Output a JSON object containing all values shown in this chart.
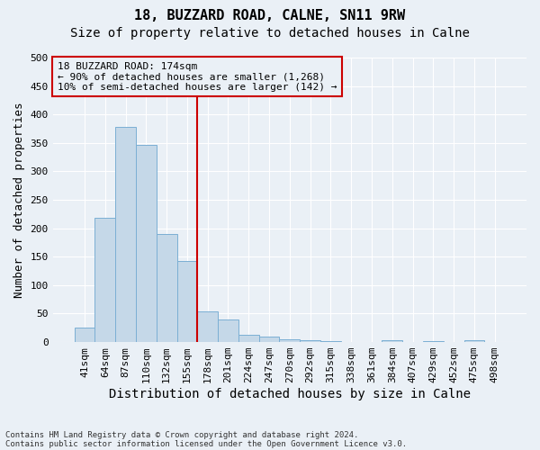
{
  "title": "18, BUZZARD ROAD, CALNE, SN11 9RW",
  "subtitle": "Size of property relative to detached houses in Calne",
  "xlabel": "Distribution of detached houses by size in Calne",
  "ylabel": "Number of detached properties",
  "footer1": "Contains HM Land Registry data © Crown copyright and database right 2024.",
  "footer2": "Contains public sector information licensed under the Open Government Licence v3.0.",
  "categories": [
    "41sqm",
    "64sqm",
    "87sqm",
    "110sqm",
    "132sqm",
    "155sqm",
    "178sqm",
    "201sqm",
    "224sqm",
    "247sqm",
    "270sqm",
    "292sqm",
    "315sqm",
    "338sqm",
    "361sqm",
    "384sqm",
    "407sqm",
    "429sqm",
    "452sqm",
    "475sqm",
    "498sqm"
  ],
  "values": [
    25,
    218,
    378,
    347,
    190,
    143,
    54,
    40,
    12,
    9,
    5,
    3,
    1,
    0,
    0,
    3,
    0,
    2,
    0,
    3,
    0
  ],
  "bar_color": "#c5d8e8",
  "bar_edge_color": "#7bafd4",
  "vline_x": 5.5,
  "vline_color": "#cc0000",
  "annotation_text": "18 BUZZARD ROAD: 174sqm\n← 90% of detached houses are smaller (1,268)\n10% of semi-detached houses are larger (142) →",
  "annotation_box_color": "#cc0000",
  "ylim": [
    0,
    500
  ],
  "yticks": [
    0,
    50,
    100,
    150,
    200,
    250,
    300,
    350,
    400,
    450,
    500
  ],
  "background_color": "#eaf0f6",
  "grid_color": "#ffffff",
  "title_fontsize": 11,
  "subtitle_fontsize": 10,
  "axis_fontsize": 9,
  "tick_fontsize": 8,
  "footer_fontsize": 6.5
}
